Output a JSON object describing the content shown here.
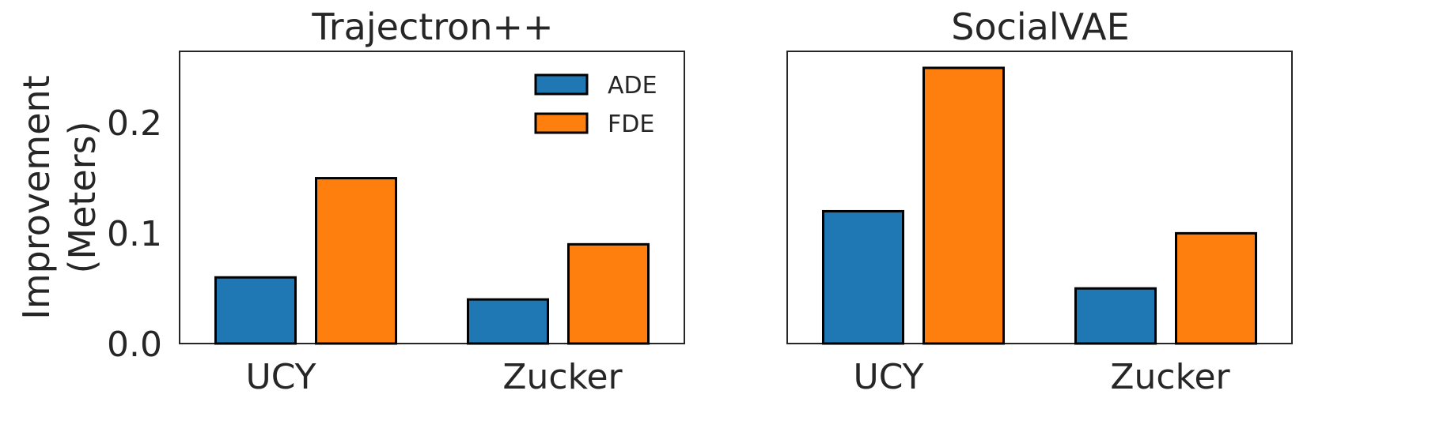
{
  "chart_data": [
    {
      "type": "bar",
      "title": "Trajectron++",
      "ylabel_line1": "Improvement",
      "ylabel_line2": "(Meters)",
      "categories": [
        "UCY",
        "Zucker"
      ],
      "series": [
        {
          "name": "ADE",
          "values": [
            0.06,
            0.04
          ],
          "color": "#1f77b4"
        },
        {
          "name": "FDE",
          "values": [
            0.15,
            0.09
          ],
          "color": "#ff7f0e"
        }
      ],
      "ylim": [
        0,
        0.265
      ],
      "yticks": [
        "0.0",
        "0.1",
        "0.2"
      ],
      "grid": false,
      "legend": "top-right"
    },
    {
      "type": "bar",
      "title": "SocialVAE",
      "categories": [
        "UCY",
        "Zucker"
      ],
      "series": [
        {
          "name": "ADE",
          "values": [
            0.12,
            0.05
          ],
          "color": "#1f77b4"
        },
        {
          "name": "FDE",
          "values": [
            0.25,
            0.1
          ],
          "color": "#ff7f0e"
        }
      ],
      "ylim": [
        0,
        0.265
      ],
      "grid": false
    }
  ]
}
